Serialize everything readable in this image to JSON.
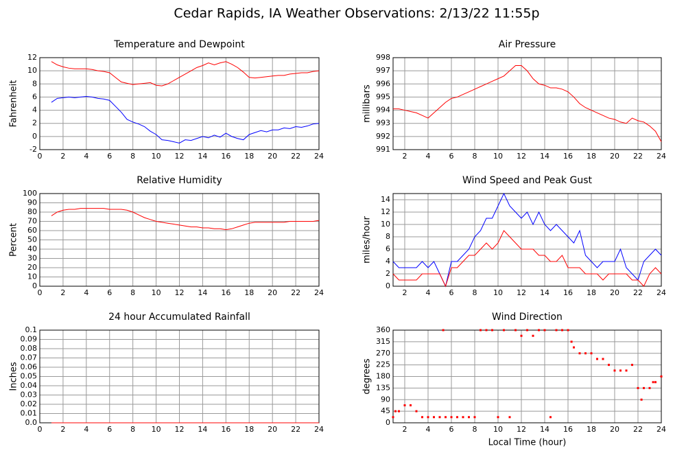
{
  "title": "Cedar Rapids, IA Weather Observations: 2/13/22 11:55p",
  "chart_data": [
    {
      "type": "line",
      "title": "Temperature and Dewpoint",
      "ylabel": "Fahrenheit",
      "xlim": [
        0,
        24
      ],
      "xticks": [
        0,
        2,
        4,
        6,
        8,
        10,
        12,
        14,
        16,
        18,
        20,
        22,
        24
      ],
      "ylim": [
        -2,
        12
      ],
      "yticks": [
        -2,
        0,
        2,
        4,
        6,
        8,
        10,
        12
      ],
      "grid": true,
      "x": [
        1,
        1.5,
        2,
        2.5,
        3,
        3.5,
        4,
        4.5,
        5,
        5.5,
        6,
        6.5,
        7,
        7.5,
        8,
        8.5,
        9,
        9.5,
        10,
        10.5,
        11,
        11.5,
        12,
        12.5,
        13,
        13.5,
        14,
        14.5,
        15,
        15.5,
        16,
        16.5,
        17,
        17.5,
        18,
        18.5,
        19,
        19.5,
        20,
        20.5,
        21,
        21.5,
        22,
        22.5,
        23,
        23.5,
        24
      ],
      "series": [
        {
          "color": "#ff0000",
          "values": [
            11.4,
            10.9,
            10.6,
            10.4,
            10.3,
            10.3,
            10.3,
            10.2,
            10.0,
            9.9,
            9.7,
            9.0,
            8.3,
            8.1,
            7.9,
            8.0,
            8.1,
            8.2,
            7.8,
            7.7,
            8.0,
            8.5,
            9.0,
            9.5,
            10.0,
            10.5,
            10.8,
            11.2,
            10.9,
            11.2,
            11.4,
            11.0,
            10.5,
            9.8,
            9.0,
            8.9,
            9.0,
            9.1,
            9.2,
            9.3,
            9.3,
            9.5,
            9.6,
            9.7,
            9.7,
            9.9,
            10.0
          ]
        },
        {
          "color": "#0000ff",
          "values": [
            5.2,
            5.8,
            5.9,
            6.0,
            5.9,
            6.0,
            6.1,
            6.0,
            5.8,
            5.7,
            5.5,
            4.6,
            3.7,
            2.6,
            2.2,
            1.9,
            1.5,
            0.8,
            0.3,
            -0.5,
            -0.6,
            -0.8,
            -1.0,
            -0.5,
            -0.6,
            -0.3,
            0.0,
            -0.2,
            0.2,
            -0.1,
            0.5,
            0.0,
            -0.3,
            -0.5,
            0.3,
            0.6,
            0.9,
            0.7,
            1.0,
            1.0,
            1.3,
            1.2,
            1.5,
            1.4,
            1.6,
            1.9,
            2.0
          ]
        }
      ]
    },
    {
      "type": "line",
      "title": "Air Pressure",
      "ylabel": "millibars",
      "xlim": [
        1,
        24
      ],
      "xticks": [
        2,
        4,
        6,
        8,
        10,
        12,
        14,
        16,
        18,
        20,
        22,
        24
      ],
      "ylim": [
        991,
        998
      ],
      "yticks": [
        991,
        992,
        993,
        994,
        995,
        996,
        997,
        998
      ],
      "grid": true,
      "x": [
        1,
        1.5,
        2,
        2.5,
        3,
        3.5,
        4,
        4.5,
        5,
        5.5,
        6,
        6.5,
        7,
        7.5,
        8,
        8.5,
        9,
        9.5,
        10,
        10.5,
        11,
        11.5,
        12,
        12.5,
        13,
        13.5,
        14,
        14.5,
        15,
        15.5,
        16,
        16.5,
        17,
        17.5,
        18,
        18.5,
        19,
        19.5,
        20,
        20.5,
        21,
        21.5,
        22,
        22.5,
        23,
        23.5,
        24
      ],
      "series": [
        {
          "color": "#ff0000",
          "values": [
            994.1,
            994.1,
            994.0,
            993.9,
            993.8,
            993.6,
            993.4,
            993.8,
            994.2,
            994.6,
            994.9,
            995.0,
            995.2,
            995.4,
            995.6,
            995.8,
            996.0,
            996.2,
            996.4,
            996.6,
            997.0,
            997.4,
            997.4,
            997.0,
            996.4,
            996.0,
            995.9,
            995.7,
            995.7,
            995.6,
            995.4,
            995.0,
            994.5,
            994.2,
            994.0,
            993.8,
            993.6,
            993.4,
            993.3,
            993.1,
            993.0,
            993.4,
            993.2,
            993.1,
            992.8,
            992.4,
            991.6
          ]
        }
      ]
    },
    {
      "type": "line",
      "title": "Relative Humidity",
      "ylabel": "Percent",
      "xlim": [
        0,
        24
      ],
      "xticks": [
        0,
        2,
        4,
        6,
        8,
        10,
        12,
        14,
        16,
        18,
        20,
        22,
        24
      ],
      "ylim": [
        0,
        100
      ],
      "yticks": [
        0,
        10,
        20,
        30,
        40,
        50,
        60,
        70,
        80,
        90,
        100
      ],
      "grid": true,
      "x": [
        1,
        1.5,
        2,
        2.5,
        3,
        3.5,
        4,
        4.5,
        5,
        5.5,
        6,
        6.5,
        7,
        7.5,
        8,
        8.5,
        9,
        9.5,
        10,
        10.5,
        11,
        11.5,
        12,
        12.5,
        13,
        13.5,
        14,
        14.5,
        15,
        15.5,
        16,
        16.5,
        17,
        17.5,
        18,
        18.5,
        19,
        19.5,
        20,
        20.5,
        21,
        21.5,
        22,
        22.5,
        23,
        23.5,
        24
      ],
      "series": [
        {
          "color": "#ff0000",
          "values": [
            76,
            80,
            82,
            83,
            83,
            84,
            84,
            84,
            84,
            84,
            83,
            83,
            83,
            82,
            80,
            77,
            74,
            72,
            70,
            69,
            68,
            67,
            66,
            65,
            64,
            64,
            63,
            63,
            62,
            62,
            61,
            62,
            64,
            66,
            68,
            69,
            69,
            69,
            69,
            69,
            69,
            70,
            70,
            70,
            70,
            70,
            71
          ]
        }
      ]
    },
    {
      "type": "line",
      "title": "Wind Speed and Peak Gust",
      "ylabel": "miles/hour",
      "xlim": [
        1,
        24
      ],
      "xticks": [
        2,
        4,
        6,
        8,
        10,
        12,
        14,
        16,
        18,
        20,
        22,
        24
      ],
      "ylim": [
        0,
        15
      ],
      "yticks": [
        0,
        2,
        4,
        6,
        8,
        10,
        12,
        14
      ],
      "grid": true,
      "x": [
        1,
        1.5,
        2,
        2.5,
        3,
        3.5,
        4,
        4.5,
        5,
        5.5,
        6,
        6.5,
        7,
        7.5,
        8,
        8.5,
        9,
        9.5,
        10,
        10.5,
        11,
        11.5,
        12,
        12.5,
        13,
        13.5,
        14,
        14.5,
        15,
        15.5,
        16,
        16.5,
        17,
        17.5,
        18,
        18.5,
        19,
        19.5,
        20,
        20.5,
        21,
        21.5,
        22,
        22.5,
        23,
        23.5,
        24
      ],
      "series": [
        {
          "color": "#0000ff",
          "values": [
            4,
            3,
            3,
            3,
            3,
            4,
            3,
            4,
            2,
            0,
            4,
            4,
            5,
            6,
            8,
            9,
            11,
            11,
            13,
            15,
            13,
            12,
            11,
            12,
            10,
            12,
            10,
            9,
            10,
            9,
            8,
            7,
            9,
            5,
            4,
            3,
            4,
            4,
            4,
            6,
            3,
            2,
            1,
            4,
            5,
            6,
            5
          ]
        },
        {
          "color": "#ff0000",
          "values": [
            2,
            1,
            1,
            1,
            1,
            2,
            2,
            2,
            2,
            0,
            3,
            3,
            4,
            5,
            5,
            6,
            7,
            6,
            7,
            9,
            8,
            7,
            6,
            6,
            6,
            5,
            5,
            4,
            4,
            5,
            3,
            3,
            3,
            2,
            2,
            2,
            1,
            2,
            2,
            2,
            2,
            1,
            1,
            0,
            2,
            3,
            2
          ]
        }
      ]
    },
    {
      "type": "line",
      "title": "24 hour Accumulated Rainfall",
      "ylabel": "Inches",
      "xlim": [
        0,
        24
      ],
      "xticks": [
        0,
        2,
        4,
        6,
        8,
        10,
        12,
        14,
        16,
        18,
        20,
        22,
        24
      ],
      "ylim": [
        0,
        0.1
      ],
      "yticks": [
        {
          "value": 0,
          "label": "0.0"
        },
        0.01,
        0.02,
        0.03,
        0.04,
        0.05,
        0.06,
        0.07,
        0.08,
        0.09,
        0.1
      ],
      "grid": true,
      "x": [
        1,
        24
      ],
      "series": [
        {
          "color": "#ff0000",
          "values": [
            0,
            0
          ]
        }
      ]
    },
    {
      "type": "scatter",
      "title": "Wind Direction",
      "ylabel": "degrees",
      "xlabel": "Local Time (hour)",
      "xlim": [
        1,
        24
      ],
      "xticks": [
        2,
        4,
        6,
        8,
        10,
        12,
        14,
        16,
        18,
        20,
        22,
        24
      ],
      "ylim": [
        0,
        360
      ],
      "yticks": [
        0,
        45,
        90,
        135,
        180,
        225,
        270,
        315,
        360
      ],
      "grid": true,
      "color": "#ff0000",
      "x": [
        1,
        1.2,
        1.5,
        2,
        2.5,
        3,
        3.5,
        4,
        4.5,
        5,
        5.3,
        5.5,
        6,
        6.5,
        7,
        7.5,
        8,
        8.5,
        9,
        9.5,
        10,
        10.5,
        11,
        11.5,
        12,
        12.5,
        13,
        13.5,
        14,
        14.5,
        15,
        15.5,
        16,
        16.3,
        16.5,
        17,
        17.5,
        18,
        18.5,
        19,
        19.5,
        20,
        20.5,
        21,
        21.5,
        22,
        22.3,
        22.5,
        23,
        23.3,
        23.5,
        24
      ],
      "values": [
        22,
        45,
        45,
        68,
        68,
        45,
        22,
        22,
        22,
        22,
        360,
        22,
        22,
        22,
        22,
        22,
        22,
        360,
        360,
        360,
        22,
        360,
        22,
        360,
        338,
        360,
        338,
        360,
        360,
        22,
        360,
        360,
        360,
        315,
        293,
        270,
        270,
        270,
        248,
        248,
        225,
        203,
        203,
        203,
        225,
        135,
        90,
        135,
        135,
        158,
        158,
        180
      ]
    }
  ]
}
